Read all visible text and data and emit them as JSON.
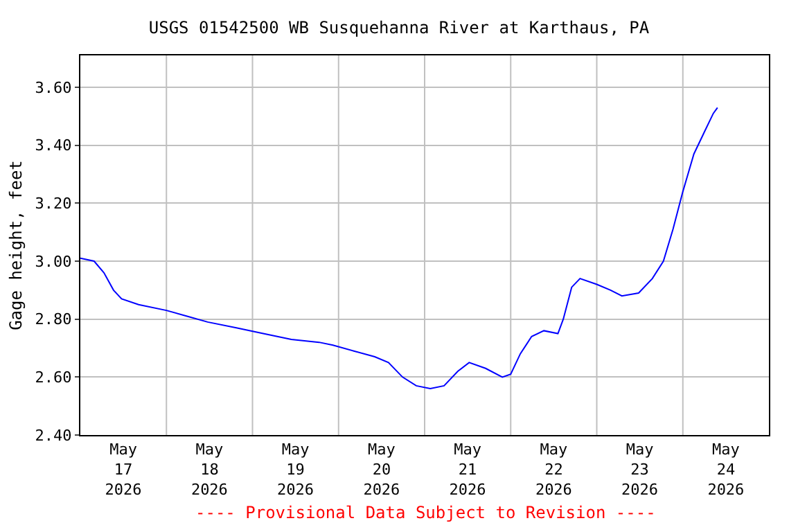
{
  "chart_data": {
    "type": "line",
    "title": "USGS 01542500 WB Susquehanna River at Karthaus, PA",
    "ylabel": "Gage height, feet",
    "x": [
      "2026-05-17T00:00",
      "2026-05-17T03:50",
      "2026-05-17T06:35",
      "2026-05-17T09:15",
      "2026-05-17T11:30",
      "2026-05-17T16:15",
      "2026-05-18T00:00",
      "2026-05-18T05:45",
      "2026-05-18T11:30",
      "2026-05-18T19:30",
      "2026-05-19T03:00",
      "2026-05-19T10:50",
      "2026-05-19T18:35",
      "2026-05-19T22:25",
      "2026-05-20T04:15",
      "2026-05-20T10:05",
      "2026-05-20T13:55",
      "2026-05-20T17:50",
      "2026-05-20T21:40",
      "2026-05-21T01:35",
      "2026-05-21T05:25",
      "2026-05-21T09:15",
      "2026-05-21T12:25",
      "2026-05-21T17:00",
      "2026-05-21T21:40",
      "2026-05-22T00:00",
      "2026-05-22T02:40",
      "2026-05-22T05:50",
      "2026-05-22T09:15",
      "2026-05-22T13:10",
      "2026-05-22T14:40",
      "2026-05-22T17:00",
      "2026-05-22T19:20",
      "2026-05-23T00:00",
      "2026-05-23T03:50",
      "2026-05-23T07:00",
      "2026-05-23T11:40",
      "2026-05-23T15:30",
      "2026-05-23T18:35",
      "2026-05-23T21:15",
      "2026-05-24T00:00",
      "2026-05-24T03:05",
      "2026-05-24T06:10",
      "2026-05-24T08:30",
      "2026-05-24T09:40"
    ],
    "series": [
      {
        "color": "#0000ff",
        "values": [
          3.01,
          3.0,
          2.96,
          2.9,
          2.87,
          2.85,
          2.83,
          2.81,
          2.79,
          2.77,
          2.75,
          2.73,
          2.72,
          2.71,
          2.69,
          2.67,
          2.65,
          2.6,
          2.57,
          2.56,
          2.57,
          2.62,
          2.65,
          2.63,
          2.6,
          2.61,
          2.68,
          2.74,
          2.76,
          2.75,
          2.8,
          2.91,
          2.94,
          2.92,
          2.9,
          2.88,
          2.89,
          2.94,
          3.0,
          3.11,
          3.24,
          3.37,
          3.45,
          3.51,
          3.53
        ]
      }
    ],
    "xlim": [
      "2026-05-17T00:00",
      "2026-05-25T00:00"
    ],
    "xticks": [
      {
        "value": "2026-05-17T12:00",
        "label": "May\n17\n2026"
      },
      {
        "value": "2026-05-18T12:00",
        "label": "May\n18\n2026"
      },
      {
        "value": "2026-05-19T12:00",
        "label": "May\n19\n2026"
      },
      {
        "value": "2026-05-20T12:00",
        "label": "May\n20\n2026"
      },
      {
        "value": "2026-05-21T12:00",
        "label": "May\n21\n2026"
      },
      {
        "value": "2026-05-22T12:00",
        "label": "May\n22\n2026"
      },
      {
        "value": "2026-05-23T12:00",
        "label": "May\n23\n2026"
      },
      {
        "value": "2026-05-24T12:00",
        "label": "May\n24\n2026"
      },
      {
        "value": "2026-05-18T00:00",
        "label": null
      },
      {
        "value": "2026-05-19T00:00",
        "label": null
      },
      {
        "value": "2026-05-20T00:00",
        "label": null
      },
      {
        "value": "2026-05-21T00:00",
        "label": null
      },
      {
        "value": "2026-05-22T00:00",
        "label": null
      },
      {
        "value": "2026-05-23T00:00",
        "label": null
      },
      {
        "value": "2026-05-24T00:00",
        "label": null
      }
    ],
    "ylim": [
      2.4,
      3.71
    ],
    "yticks": [
      {
        "value": 2.4,
        "label": "2.40"
      },
      {
        "value": 2.6,
        "label": "2.60"
      },
      {
        "value": 2.8,
        "label": "2.80"
      },
      {
        "value": 3.0,
        "label": "3.00"
      },
      {
        "value": 3.2,
        "label": "3.20"
      },
      {
        "value": 3.4,
        "label": "3.40"
      },
      {
        "value": 3.6,
        "label": "3.60"
      }
    ],
    "grid": true,
    "legend": false,
    "annotations": [
      "---- Provisional Data Subject to Revision ----"
    ]
  }
}
